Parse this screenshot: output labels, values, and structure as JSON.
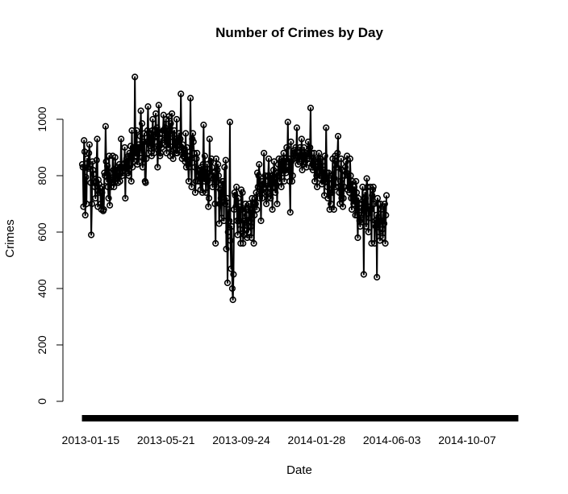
{
  "chart_data": {
    "type": "line",
    "title": "Number of Crimes by Day",
    "xlabel": "Date",
    "ylabel": "Crimes",
    "marker": "open-circle",
    "line_color": "#000000",
    "x_start": "2013-01-01",
    "x_end": "2014-12-31",
    "xlim": [
      "2013-01-01",
      "2014-12-31"
    ],
    "ylim": [
      0,
      1150
    ],
    "x_ticks": [
      "2013-01-15",
      "2013-05-21",
      "2013-09-24",
      "2014-01-28",
      "2014-06-03",
      "2014-10-07"
    ],
    "y_ticks": [
      0,
      200,
      400,
      600,
      800,
      1000
    ],
    "grid": false,
    "legend": "none",
    "series": [
      {
        "values": [
          840,
          830,
          690,
          925,
          885,
          660,
          795,
          700,
          860,
          830,
          825,
          880,
          910,
          840,
          775,
          590,
          700,
          850,
          820,
          805,
          775,
          760,
          720,
          780,
          855,
          930,
          690,
          785,
          770,
          740,
          755,
          700,
          680,
          740,
          760,
          675,
          680,
          810,
          800,
          975,
          850,
          780,
          835,
          760,
          720,
          870,
          695,
          810,
          760,
          785,
          775,
          870,
          820,
          760,
          775,
          865,
          780,
          810,
          830,
          790,
          775,
          800,
          840,
          780,
          830,
          930,
          830,
          800,
          810,
          840,
          820,
          900,
          720,
          850,
          860,
          830,
          810,
          870,
          800,
          880,
          870,
          905,
          780,
          960,
          830,
          890,
          900,
          850,
          1150,
          880,
          870,
          960,
          840,
          900,
          910,
          850,
          880,
          940,
          1030,
          880,
          985,
          830,
          920,
          860,
          950,
          780,
          775,
          860,
          920,
          960,
          1045,
          880,
          950,
          920,
          905,
          950,
          870,
          960,
          1000,
          900,
          880,
          920,
          940,
          1020,
          940,
          970,
          830,
          890,
          1050,
          910,
          870,
          880,
          930,
          900,
          950,
          960,
          1015,
          960,
          910,
          970,
          1000,
          880,
          960,
          940,
          900,
          1010,
          960,
          870,
          985,
          950,
          1020,
          920,
          860,
          890,
          960,
          900,
          930,
          880,
          1000,
          880,
          920,
          910,
          950,
          890,
          930,
          1090,
          900,
          860,
          910,
          870,
          890,
          880,
          850,
          950,
          830,
          900,
          870,
          840,
          780,
          830,
          870,
          1075,
          860,
          760,
          930,
          950,
          920,
          880,
          830,
          740,
          780,
          860,
          880,
          820,
          780,
          800,
          820,
          780,
          750,
          830,
          810,
          740,
          840,
          980,
          780,
          870,
          800,
          740,
          810,
          840,
          780,
          690,
          720,
          930,
          800,
          850,
          860,
          830,
          760,
          790,
          810,
          810,
          700,
          560,
          860,
          760,
          820,
          840,
          800,
          630,
          700,
          750,
          720,
          650,
          780,
          760,
          780,
          640,
          830,
          700,
          855,
          540,
          720,
          420,
          600,
          680,
          640,
          990,
          570,
          470,
          620,
          400,
          360,
          450,
          680,
          740,
          730,
          690,
          760,
          640,
          590,
          720,
          640,
          690,
          610,
          560,
          750,
          680,
          740,
          560,
          640,
          590,
          640,
          700,
          680,
          660,
          580,
          620,
          600,
          700,
          640,
          680,
          620,
          580,
          720,
          680,
          700,
          560,
          660,
          720,
          700,
          740,
          680,
          810,
          760,
          800,
          840,
          720,
          760,
          640,
          780,
          720,
          780,
          740,
          880,
          760,
          800,
          780,
          700,
          740,
          720,
          800,
          860,
          760,
          800,
          720,
          780,
          800,
          680,
          780,
          820,
          850,
          760,
          740,
          770,
          810,
          700,
          800,
          840,
          860,
          780,
          820,
          850,
          760,
          860,
          810,
          850,
          880,
          780,
          820,
          860,
          810,
          900,
          850,
          990,
          820,
          860,
          780,
          670,
          920,
          850,
          780,
          800,
          880,
          860,
          890,
          880,
          900,
          870,
          970,
          860,
          840,
          880,
          850,
          900,
          870,
          860,
          930,
          820,
          880,
          840,
          900,
          870,
          850,
          880,
          830,
          860,
          870,
          920,
          880,
          860,
          900,
          1040,
          830,
          880,
          840,
          820,
          860,
          880,
          780,
          850,
          840,
          800,
          760,
          830,
          860,
          880,
          790,
          860,
          860,
          800,
          770,
          850,
          780,
          820,
          730,
          870,
          780,
          970,
          810,
          760,
          720,
          810,
          790,
          680,
          740,
          700,
          800,
          740,
          860,
          780,
          680,
          790,
          870,
          760,
          850,
          830,
          880,
          940,
          760,
          740,
          700,
          780,
          860,
          720,
          820,
          690,
          720,
          760,
          800,
          830,
          850,
          810,
          870,
          750,
          800,
          760,
          740,
          860,
          800,
          720,
          680,
          780,
          720,
          700,
          760,
          720,
          660,
          780,
          740,
          660,
          580,
          720,
          700,
          640,
          620,
          650,
          660,
          700,
          760,
          680,
          450,
          700,
          740,
          720,
          620,
          790,
          760,
          690,
          600,
          650,
          680,
          760,
          680,
          560,
          730,
          750,
          760,
          700,
          560,
          640,
          620,
          660,
          440,
          720,
          700,
          640,
          600,
          570,
          700,
          680,
          640,
          610,
          580,
          690,
          630,
          700,
          560,
          660,
          730
        ]
      }
    ]
  }
}
